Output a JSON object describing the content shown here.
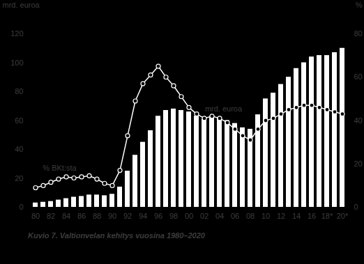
{
  "chart_data": {
    "type": "bar",
    "title": "Kuvio 7. Valtionvelan kehitys vuosina 1980–2020",
    "y_label": "mrd. euroa",
    "y2_label": "%",
    "categories": [
      "80",
      null,
      "82",
      null,
      "84",
      null,
      "86",
      null,
      "88",
      null,
      "90",
      null,
      "92",
      null,
      "94",
      null,
      "96",
      null,
      "98",
      null,
      "00",
      null,
      "02",
      null,
      "04",
      null,
      "06",
      null,
      "08",
      null,
      "10",
      null,
      "12",
      null,
      "14",
      null,
      "16",
      null,
      "18*",
      null,
      "20*"
    ],
    "series": [
      {
        "name": "mrd. euroa",
        "type": "bar",
        "color": "#ffffff",
        "values": [
          3,
          3.5,
          4,
          5,
          6,
          7,
          7.5,
          8.5,
          8.5,
          8,
          9,
          14,
          25,
          36,
          45,
          53,
          63,
          67,
          68,
          67,
          66,
          63,
          61,
          62,
          62,
          60,
          58,
          55,
          54,
          64,
          75,
          79,
          85,
          90,
          96,
          100,
          104,
          105,
          105,
          107,
          110
        ]
      },
      {
        "name": "% BKt:sta",
        "type": "line",
        "axis": "y2",
        "color": "#ffffff",
        "marker": "circle",
        "values": [
          9,
          10,
          11.5,
          13,
          14,
          13.5,
          14,
          14.5,
          13,
          11,
          10,
          17,
          33,
          49,
          57,
          61,
          65,
          60,
          56,
          51,
          46,
          43,
          41,
          42,
          41,
          39,
          36,
          33,
          31,
          36,
          40,
          41,
          43,
          45,
          46,
          47,
          47,
          46,
          45,
          44,
          43
        ]
      }
    ],
    "ylim": [
      0,
      120
    ],
    "yticks": [
      0,
      20,
      40,
      60,
      80,
      100,
      120
    ],
    "y2lim": [
      0,
      80
    ],
    "y2ticks": [
      0,
      20,
      40,
      60,
      80
    ],
    "grid": false
  }
}
